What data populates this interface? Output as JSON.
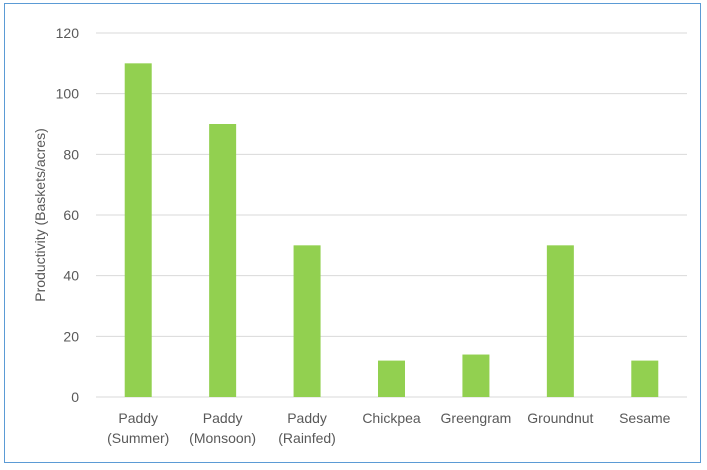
{
  "chart_data": {
    "type": "bar",
    "title": "",
    "xlabel": "",
    "ylabel": "Productivity (Baskets/acres)",
    "categories": [
      [
        "Paddy",
        "(Summer)"
      ],
      [
        "Paddy",
        "(Monsoon)"
      ],
      [
        "Paddy",
        "(Rainfed)"
      ],
      [
        "Chickpea"
      ],
      [
        "Greengram"
      ],
      [
        "Groundnut"
      ],
      [
        "Sesame"
      ]
    ],
    "values": [
      110,
      90,
      50,
      12,
      14,
      50,
      12
    ],
    "ylim": [
      0,
      120
    ],
    "yticks": [
      0,
      20,
      40,
      60,
      80,
      100,
      120
    ],
    "grid": true,
    "legend": "none",
    "colors": {
      "bar": "#92d050",
      "grid": "#d9d9d9",
      "text": "#595959",
      "frame": "#5b9bd5"
    }
  }
}
